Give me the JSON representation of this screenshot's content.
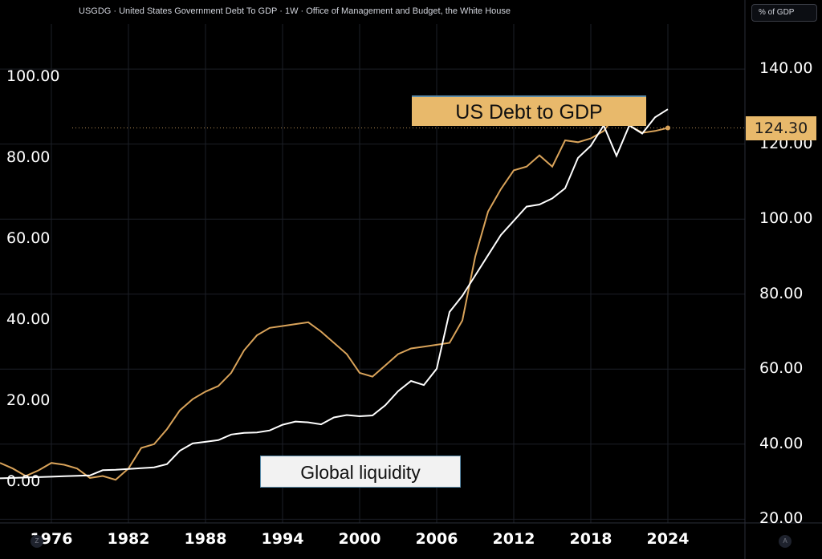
{
  "header": {
    "title": "USGDG · United States Government Debt To GDP · 1W · Office of Management and Budget, the White House",
    "unit_badge": "% of GDP"
  },
  "annotations": {
    "debt_label": "US Debt to GDP",
    "liquidity_label": "Global liquidity",
    "last_value": "124.30"
  },
  "controls": {
    "left_corner": "Z",
    "right_corner": "A"
  },
  "colors": {
    "background": "#000000",
    "debt_series": "#d9a35a",
    "liquidity_series": "#ffffff",
    "label_bg": "#e8b96b"
  },
  "chart_data": {
    "type": "line",
    "title": "",
    "x_ticks": [
      "1976",
      "1982",
      "1988",
      "1994",
      "2000",
      "2006",
      "2012",
      "2018",
      "2024"
    ],
    "y_left_ticks": [
      "0.00",
      "20.00",
      "40.00",
      "60.00",
      "80.00",
      "100.00"
    ],
    "y_right_ticks": [
      "20.00",
      "40.00",
      "60.00",
      "80.00",
      "100.00",
      "120.00",
      "140.00"
    ],
    "y_left_range": [
      -10,
      113
    ],
    "y_right_range": [
      19,
      152
    ],
    "xlim": [
      1972,
      2030
    ],
    "grid": true,
    "series": [
      {
        "name": "US Debt to GDP",
        "axis": "right",
        "x": [
          1972,
          1973,
          1974,
          1975,
          1976,
          1977,
          1978,
          1979,
          1980,
          1981,
          1982,
          1983,
          1984,
          1985,
          1986,
          1987,
          1988,
          1989,
          1990,
          1991,
          1992,
          1993,
          1994,
          1995,
          1996,
          1997,
          1998,
          1999,
          2000,
          2001,
          2002,
          2003,
          2004,
          2005,
          2006,
          2007,
          2008,
          2009,
          2010,
          2011,
          2012,
          2013,
          2014,
          2015,
          2016,
          2017,
          2018,
          2019,
          2020,
          2021,
          2022,
          2023,
          2024
        ],
        "values": [
          35,
          33.5,
          31.5,
          33,
          35,
          34.5,
          33.5,
          31,
          31.5,
          30.5,
          33.5,
          39,
          40,
          44,
          49,
          52,
          54,
          55.5,
          59,
          65,
          69,
          71,
          71.5,
          72,
          72.5,
          70,
          67,
          64,
          59,
          58,
          61,
          64,
          65.5,
          66,
          66.5,
          67,
          73,
          90,
          102,
          108,
          113,
          114,
          117,
          114,
          121,
          120.5,
          121.5,
          123.5,
          128,
          125,
          123,
          123.5,
          124.3
        ]
      },
      {
        "name": "Global liquidity",
        "axis": "left",
        "x": [
          1972,
          1973,
          1974,
          1975,
          1976,
          1977,
          1978,
          1979,
          1980,
          1981,
          1982,
          1983,
          1984,
          1985,
          1986,
          1987,
          1988,
          1989,
          1990,
          1991,
          1992,
          1993,
          1994,
          1995,
          1996,
          1997,
          1998,
          1999,
          2000,
          2001,
          2002,
          2003,
          2004,
          2005,
          2006,
          2007,
          2008,
          2009,
          2010,
          2011,
          2012,
          2013,
          2014,
          2015,
          2016,
          2017,
          2018,
          2019,
          2020,
          2021,
          2022,
          2023,
          2024
        ],
        "values": [
          1,
          1.1,
          1.2,
          1.3,
          1.4,
          1.5,
          1.6,
          1.7,
          3,
          3.1,
          3.3,
          3.5,
          3.7,
          4.5,
          7.8,
          9.6,
          10,
          10.4,
          11.8,
          12.2,
          12.3,
          12.8,
          14.2,
          15,
          14.8,
          14.3,
          16,
          16.6,
          16.3,
          16.5,
          19,
          22.5,
          25,
          24,
          28,
          42,
          46,
          51,
          56,
          61,
          64.5,
          68,
          68.5,
          70,
          72.5,
          80,
          83,
          88,
          80.5,
          88,
          86,
          90,
          92
        ]
      }
    ]
  }
}
